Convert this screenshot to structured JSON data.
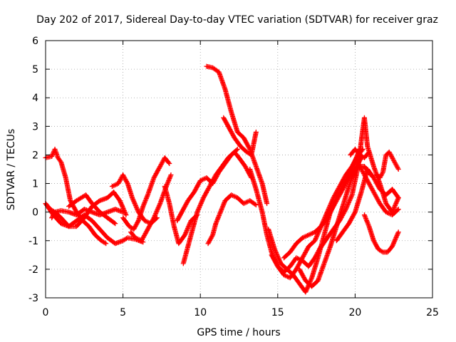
{
  "chart_data": {
    "type": "scatter",
    "title": "Day 202 of 2017, Sidereal Day-to-day VTEC variation (SDTVAR) for receiver graz",
    "xlabel": "GPS time / hours",
    "ylabel": "SDTVAR / TECUs",
    "xlim": [
      0,
      25
    ],
    "ylim": [
      -3,
      6
    ],
    "xticks": [
      0,
      5,
      10,
      15,
      20,
      25
    ],
    "yticks": [
      -3,
      -2,
      -1,
      0,
      1,
      2,
      3,
      4,
      5,
      6
    ],
    "grid": true,
    "marker": "+",
    "color": "#ff0000",
    "series": [
      {
        "name": "trace-1",
        "x": [
          0.0,
          0.4,
          0.6,
          0.8,
          1.0,
          1.3,
          1.6,
          2.0,
          2.4,
          2.8,
          3.2,
          3.6,
          3.9
        ],
        "y": [
          1.9,
          1.95,
          2.2,
          1.9,
          1.75,
          1.2,
          0.4,
          0.0,
          -0.3,
          -0.5,
          -0.8,
          -1.0,
          -1.1
        ]
      },
      {
        "name": "trace-2",
        "x": [
          0.0,
          0.3,
          0.6,
          1.0,
          1.5,
          2.0,
          2.5,
          3.0,
          3.5,
          4.0,
          4.5,
          5.0
        ],
        "y": [
          0.3,
          0.1,
          0.0,
          0.05,
          0.0,
          -0.1,
          0.1,
          0.0,
          -0.1,
          0.0,
          0.1,
          0.0
        ]
      },
      {
        "name": "trace-3",
        "x": [
          0.4,
          0.6,
          1.0,
          1.5,
          2.0,
          2.5,
          3.0,
          3.5,
          4.0,
          4.4,
          4.8,
          5.2
        ],
        "y": [
          -0.2,
          0.0,
          -0.2,
          -0.5,
          -0.5,
          -0.2,
          0.2,
          0.4,
          0.5,
          0.7,
          0.4,
          -0.1
        ]
      },
      {
        "name": "trace-4",
        "x": [
          0.0,
          0.5,
          1.0,
          1.5,
          2.0,
          2.5,
          3.0,
          3.5,
          4.0,
          4.5,
          5.0,
          5.3,
          5.8,
          6.3
        ],
        "y": [
          0.3,
          -0.1,
          -0.4,
          -0.5,
          -0.3,
          -0.1,
          -0.3,
          -0.6,
          -0.9,
          -1.1,
          -1.0,
          -0.9,
          -0.95,
          -1.05
        ]
      },
      {
        "name": "trace-5",
        "x": [
          1.5,
          2.0,
          2.3,
          2.6,
          3.0,
          3.5,
          4.0,
          4.5
        ],
        "y": [
          0.2,
          0.4,
          0.5,
          0.6,
          0.3,
          0.0,
          -0.2,
          -0.4
        ]
      },
      {
        "name": "trace-6",
        "x": [
          4.3,
          4.7,
          5.0,
          5.3,
          5.6,
          6.0,
          6.4,
          6.8,
          7.2
        ],
        "y": [
          0.9,
          1.0,
          1.3,
          1.0,
          0.5,
          0.0,
          -0.3,
          -0.4,
          -0.2
        ]
      },
      {
        "name": "trace-7",
        "x": [
          5.5,
          5.8,
          6.2,
          6.6,
          7.0,
          7.4,
          7.8,
          8.1
        ],
        "y": [
          -0.7,
          -0.9,
          -1.0,
          -0.6,
          -0.2,
          0.3,
          0.9,
          1.3
        ]
      },
      {
        "name": "trace-8",
        "x": [
          5.0,
          5.4,
          5.7,
          6.0,
          6.3,
          6.6,
          7.0,
          7.4,
          7.7,
          8.0
        ],
        "y": [
          -0.2,
          -0.5,
          -0.6,
          -0.3,
          0.2,
          0.6,
          1.2,
          1.6,
          1.9,
          1.7
        ]
      },
      {
        "name": "trace-9",
        "x": [
          7.7,
          8.0,
          8.3,
          8.6,
          9.0,
          9.4,
          9.8
        ],
        "y": [
          0.9,
          0.3,
          -0.5,
          -1.1,
          -0.8,
          -0.3,
          -0.1
        ]
      },
      {
        "name": "trace-10",
        "x": [
          8.5,
          8.8,
          9.2,
          9.6,
          10.0,
          10.4,
          10.8,
          11.2,
          11.6,
          12.0,
          12.4
        ],
        "y": [
          -0.3,
          0.0,
          0.4,
          0.7,
          1.1,
          1.2,
          1.0,
          1.4,
          1.7,
          2.0,
          2.2
        ]
      },
      {
        "name": "trace-11",
        "x": [
          8.9,
          9.2,
          9.5,
          9.8,
          10.2,
          10.6,
          11.0,
          11.4,
          11.8,
          12.2,
          12.5,
          12.9,
          13.3
        ],
        "y": [
          -1.8,
          -1.2,
          -0.6,
          0.0,
          0.5,
          0.9,
          1.3,
          1.6,
          1.9,
          2.1,
          1.9,
          1.6,
          1.2
        ]
      },
      {
        "name": "trace-12",
        "x": [
          10.4,
          10.8,
          11.2,
          11.6,
          12.0,
          12.4,
          12.8,
          13.2,
          13.6,
          14.0,
          14.3
        ],
        "y": [
          5.1,
          5.05,
          4.9,
          4.3,
          3.5,
          2.8,
          2.6,
          2.2,
          1.6,
          1.0,
          0.3
        ]
      },
      {
        "name": "trace-13",
        "x": [
          11.5,
          11.8,
          12.2,
          12.6,
          13.0,
          13.3,
          13.6
        ],
        "y": [
          3.3,
          3.0,
          2.6,
          2.3,
          2.1,
          2.0,
          2.8
        ]
      },
      {
        "name": "trace-14",
        "x": [
          10.5,
          10.8,
          11.0,
          11.3,
          11.6,
          12.0,
          12.4,
          12.8,
          13.2,
          13.6
        ],
        "y": [
          -1.1,
          -0.8,
          -0.4,
          0.0,
          0.4,
          0.6,
          0.5,
          0.3,
          0.4,
          0.25
        ]
      },
      {
        "name": "trace-15",
        "x": [
          13.2,
          13.6,
          14.0,
          14.3,
          14.6,
          15.0,
          15.4,
          15.8,
          16.2,
          16.6,
          17.0,
          17.4,
          17.8
        ],
        "y": [
          1.5,
          0.8,
          0.0,
          -0.8,
          -1.4,
          -1.9,
          -2.1,
          -1.9,
          -1.6,
          -1.7,
          -1.9,
          -1.6,
          -1.2
        ]
      },
      {
        "name": "trace-16",
        "x": [
          14.4,
          14.8,
          15.2,
          15.6,
          16.0,
          16.4,
          16.8,
          17.2,
          17.6,
          18.0,
          18.4,
          18.8,
          19.2,
          19.6,
          20.0,
          20.3
        ],
        "y": [
          -0.6,
          -1.3,
          -1.8,
          -2.0,
          -2.2,
          -2.5,
          -2.8,
          -2.3,
          -1.6,
          -0.8,
          0.0,
          0.5,
          0.9,
          1.3,
          1.8,
          2.2
        ]
      },
      {
        "name": "trace-17",
        "x": [
          14.6,
          15.0,
          15.4,
          15.8,
          16.2,
          16.6,
          17.0,
          17.4,
          17.8,
          18.2,
          18.6,
          19.0,
          19.4,
          19.8,
          20.2,
          20.5
        ],
        "y": [
          -1.5,
          -1.9,
          -2.2,
          -2.3,
          -2.0,
          -1.6,
          -1.2,
          -1.0,
          -0.5,
          0.0,
          0.5,
          0.9,
          1.3,
          1.6,
          2.0,
          2.2
        ]
      },
      {
        "name": "trace-18",
        "x": [
          15.4,
          15.8,
          16.2,
          16.6,
          17.0,
          17.4,
          17.8,
          18.2,
          18.6,
          19.0,
          19.4,
          19.8,
          20.2,
          20.6,
          21.0
        ],
        "y": [
          -1.6,
          -1.4,
          -1.1,
          -0.9,
          -0.8,
          -0.7,
          -0.5,
          -0.2,
          0.2,
          0.6,
          1.0,
          1.4,
          1.6,
          1.6,
          1.3
        ]
      },
      {
        "name": "trace-19",
        "x": [
          16.4,
          16.8,
          17.2,
          17.6,
          18.0,
          18.4,
          18.8,
          19.2,
          19.6,
          20.0,
          20.4
        ],
        "y": [
          -2.0,
          -2.4,
          -2.6,
          -2.4,
          -1.8,
          -1.2,
          -0.5,
          0.2,
          0.9,
          1.5,
          1.9
        ]
      },
      {
        "name": "trace-20",
        "x": [
          17.7,
          18.2,
          18.6,
          19.0,
          19.4,
          19.8,
          20.2,
          20.4,
          20.6,
          20.8,
          21.2,
          21.6,
          22.0,
          22.4,
          22.8
        ],
        "y": [
          -1.3,
          -0.9,
          -0.6,
          -0.3,
          0.1,
          0.6,
          1.6,
          2.5,
          3.3,
          2.3,
          1.6,
          1.0,
          0.3,
          0.0,
          0.5
        ]
      },
      {
        "name": "trace-21",
        "x": [
          18.8,
          19.2,
          19.6,
          20.0,
          20.4,
          20.8,
          21.2,
          21.6,
          22.0,
          22.4,
          22.8
        ],
        "y": [
          -1.0,
          -0.7,
          -0.4,
          0.0,
          0.7,
          1.5,
          1.2,
          0.8,
          0.6,
          0.8,
          0.5
        ]
      },
      {
        "name": "trace-22",
        "x": [
          20.1,
          20.4,
          20.7,
          21.0,
          21.3,
          21.6,
          22.0,
          22.4,
          22.8
        ],
        "y": [
          1.8,
          1.5,
          1.2,
          0.9,
          0.6,
          0.3,
          0.0,
          -0.1,
          0.1
        ]
      },
      {
        "name": "trace-23",
        "x": [
          20.6,
          20.9,
          21.2,
          21.5,
          21.8,
          22.1,
          22.4,
          22.8
        ],
        "y": [
          -0.1,
          -0.5,
          -1.0,
          -1.3,
          -1.4,
          -1.4,
          -1.2,
          -0.7
        ]
      },
      {
        "name": "trace-24",
        "x": [
          21.4,
          21.6,
          21.8,
          22.0,
          22.2,
          22.5,
          22.8
        ],
        "y": [
          1.3,
          1.2,
          1.4,
          2.0,
          2.1,
          1.8,
          1.5
        ]
      },
      {
        "name": "trace-25",
        "x": [
          19.7,
          20.0,
          20.3,
          20.6,
          20.9
        ],
        "y": [
          2.0,
          2.2,
          2.0,
          1.9,
          2.1
        ]
      }
    ]
  }
}
